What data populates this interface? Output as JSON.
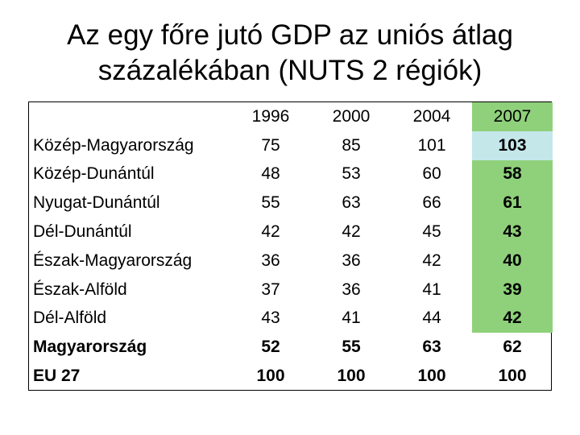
{
  "title_line1": "Az egy főre jutó GDP az uniós átlag",
  "title_line2": "százalékában (NUTS 2 régiók)",
  "colors": {
    "highlight_green": "#8fd17a",
    "highlight_blue": "#c4e7ea",
    "border": "#000000"
  },
  "chart_data": {
    "type": "table",
    "columns": [
      "",
      "1996",
      "2000",
      "2004",
      "2007"
    ],
    "rows": [
      {
        "region": "Közép-Magyarország",
        "bold": false,
        "values": [
          "75",
          "85",
          "101",
          "103"
        ]
      },
      {
        "region": "Közép-Dunántúl",
        "bold": false,
        "values": [
          "48",
          "53",
          "60",
          "58"
        ]
      },
      {
        "region": "Nyugat-Dunántúl",
        "bold": false,
        "values": [
          "55",
          "63",
          "66",
          "61"
        ]
      },
      {
        "region": "Dél-Dunántúl",
        "bold": false,
        "values": [
          "42",
          "42",
          "45",
          "43"
        ]
      },
      {
        "region": "Észak-Magyarország",
        "bold": false,
        "values": [
          "36",
          "36",
          "42",
          "40"
        ]
      },
      {
        "region": "Észak-Alföld",
        "bold": false,
        "values": [
          "37",
          "36",
          "41",
          "39"
        ]
      },
      {
        "region": "Dél-Alföld",
        "bold": false,
        "values": [
          "43",
          "41",
          "44",
          "42"
        ]
      },
      {
        "region": "Magyarország",
        "bold": true,
        "values": [
          "52",
          "55",
          "63",
          "62"
        ]
      },
      {
        "region": "EU 27",
        "bold": true,
        "values": [
          "100",
          "100",
          "100",
          "100"
        ]
      }
    ]
  }
}
